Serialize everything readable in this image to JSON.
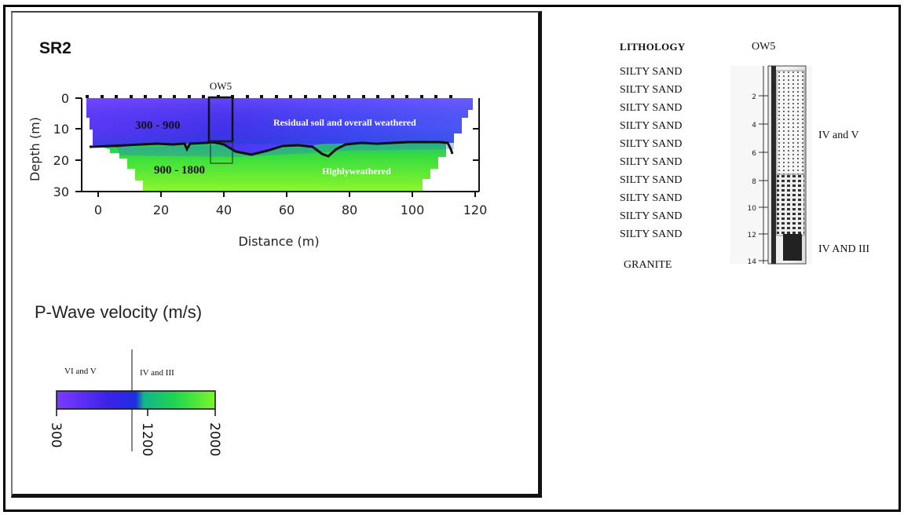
{
  "section": {
    "title": "SR2",
    "borehole_label": "OW5",
    "xlabel": "Distance (m)",
    "ylabel": "Depth (m)",
    "x_ticks": [
      "0",
      "20",
      "40",
      "60",
      "80",
      "100",
      "120"
    ],
    "y_ticks": [
      "0",
      "10",
      "20",
      "30"
    ],
    "x_range": [
      -5,
      120
    ],
    "y_range": [
      0,
      30
    ],
    "upper_layer_velocity": "300 - 900",
    "lower_layer_velocity": "900 - 1800",
    "upper_layer_label": "Residual soil and overall weathered",
    "lower_layer_label": "Highlyweathered"
  },
  "legend": {
    "title": "P-Wave velocity (m/s)",
    "left_grade": "VI and V",
    "right_grade": "IV and III",
    "ticks": [
      "300",
      "1200",
      "2000"
    ],
    "colors": [
      "#7b3cff",
      "#1f2ee0",
      "#1fd64e",
      "#7cf52a"
    ]
  },
  "borehole": {
    "header_lithology": "LITHOLOGY",
    "header_well": "OW5",
    "lithology": [
      "SILTY SAND",
      "SILTY SAND",
      "SILTY SAND",
      "SILTY SAND",
      "SILTY SAND",
      "SILTY SAND",
      "SILTY SAND",
      "SILTY SAND",
      "SILTY SAND",
      "SILTY SAND"
    ],
    "base_lithology": "GRANITE",
    "depth_ticks": [
      "2",
      "4",
      "6",
      "8",
      "10",
      "12",
      "14"
    ],
    "grade_upper": "IV and V",
    "grade_lower": "IV AND III"
  },
  "colors": {
    "upper_layer": "#4a3cff",
    "lower_layer": "#3ee03c",
    "interface_line": "#111111"
  }
}
